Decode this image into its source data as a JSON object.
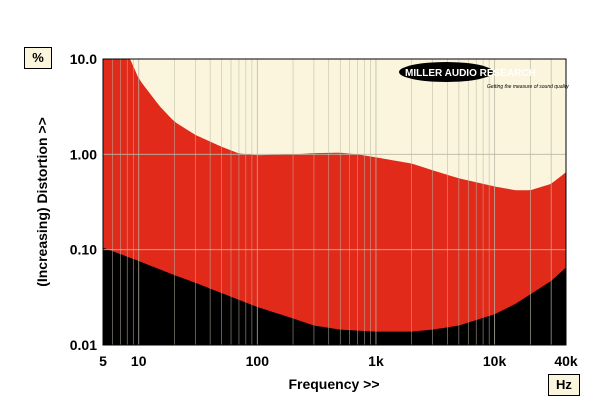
{
  "brand": {
    "name": "MILLER AUDIO RESEARCH",
    "tagline": "Getting the measure of sound quality"
  },
  "units": {
    "y": "%",
    "x": "Hz"
  },
  "colors": {
    "background_region": "#faf5dc",
    "red_region": "#e12a1a",
    "black_region": "#000000",
    "gridline": "#b9b6a5"
  },
  "chart_data": {
    "type": "area",
    "xlabel": "Frequency >>",
    "ylabel": "(Increasing) Distortion >>",
    "xscale": "log",
    "yscale": "log",
    "xlim": [
      5,
      40000
    ],
    "ylim": [
      0.01,
      10
    ],
    "x_ticks": [
      {
        "value": 5,
        "label": "5"
      },
      {
        "value": 10,
        "label": "10"
      },
      {
        "value": 100,
        "label": "100"
      },
      {
        "value": 1000,
        "label": "1k"
      },
      {
        "value": 10000,
        "label": "10k"
      },
      {
        "value": 40000,
        "label": "40k"
      }
    ],
    "y_ticks": [
      {
        "value": 10,
        "label": "10.0"
      },
      {
        "value": 1,
        "label": "1.00"
      },
      {
        "value": 0.1,
        "label": "0.10"
      },
      {
        "value": 0.01,
        "label": "0.01"
      }
    ],
    "grid": true,
    "series": [
      {
        "role": "upper",
        "points": [
          [
            5,
            10
          ],
          [
            8.5,
            10
          ],
          [
            10,
            6.2
          ],
          [
            15,
            3.2
          ],
          [
            20,
            2.2
          ],
          [
            30,
            1.6
          ],
          [
            50,
            1.2
          ],
          [
            70,
            1.02
          ],
          [
            100,
            0.98
          ],
          [
            200,
            1.0
          ],
          [
            300,
            1.03
          ],
          [
            500,
            1.04
          ],
          [
            700,
            1.0
          ],
          [
            1000,
            0.93
          ],
          [
            2000,
            0.8
          ],
          [
            3000,
            0.68
          ],
          [
            5000,
            0.56
          ],
          [
            10000,
            0.46
          ],
          [
            15000,
            0.42
          ],
          [
            20000,
            0.42
          ],
          [
            30000,
            0.49
          ],
          [
            40000,
            0.65
          ]
        ]
      },
      {
        "role": "lower",
        "points": [
          [
            5,
            0.105
          ],
          [
            7,
            0.09
          ],
          [
            10,
            0.076
          ],
          [
            20,
            0.054
          ],
          [
            30,
            0.045
          ],
          [
            50,
            0.035
          ],
          [
            100,
            0.025
          ],
          [
            200,
            0.019
          ],
          [
            300,
            0.016
          ],
          [
            500,
            0.0145
          ],
          [
            1000,
            0.0138
          ],
          [
            2000,
            0.0138
          ],
          [
            3000,
            0.0145
          ],
          [
            5000,
            0.016
          ],
          [
            10000,
            0.021
          ],
          [
            15000,
            0.027
          ],
          [
            20000,
            0.034
          ],
          [
            30000,
            0.047
          ],
          [
            40000,
            0.065
          ]
        ]
      }
    ]
  }
}
